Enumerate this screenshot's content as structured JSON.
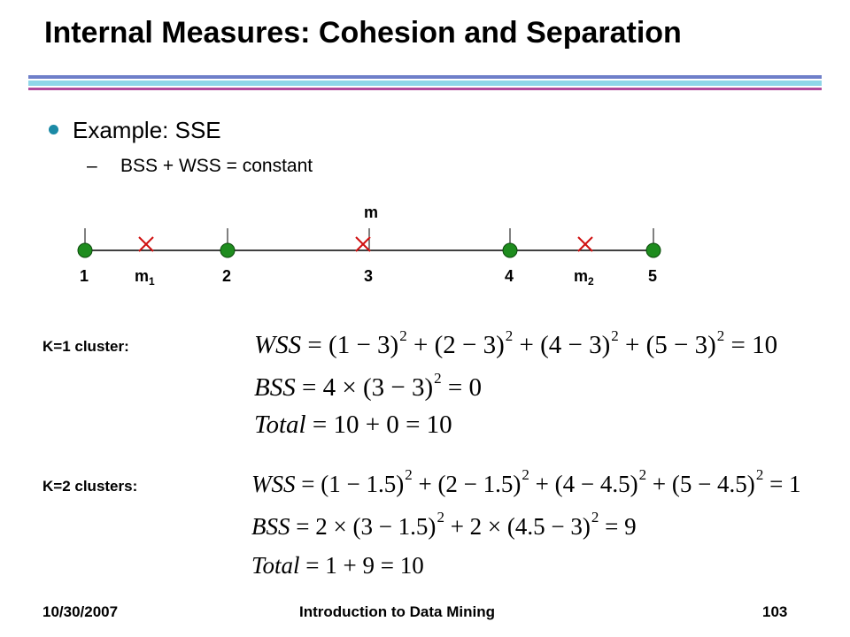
{
  "slide": {
    "title": "Internal Measures: Cohesion and Separation",
    "bullet": "Example: SSE",
    "sub_bullet_dash": "–",
    "sub_bullet": "BSS + WSS = constant"
  },
  "number_line": {
    "mean_label": "m",
    "points": [
      "1",
      "2",
      "3",
      "4",
      "5"
    ],
    "centroid_labels": [
      {
        "base": "m",
        "sub": "1"
      },
      {
        "base": "m",
        "sub": "2"
      }
    ],
    "point_color": "#1e8c1e",
    "marker_color": "#d01010"
  },
  "k1": {
    "label": "K=1 cluster:",
    "wss": {
      "lhs": "WSS",
      "terms": [
        [
          "(1 − 3)",
          "2"
        ],
        [
          "(2 − 3)",
          "2"
        ],
        [
          "(4 − 3)",
          "2"
        ],
        [
          "(5 − 3)",
          "2"
        ]
      ],
      "result": "10"
    },
    "bss": {
      "lhs": "BSS",
      "expr_pre": "4 × ",
      "term": [
        "(3 − 3)",
        "2"
      ],
      "result": "0"
    },
    "total": {
      "lhs": "Total",
      "expr": "10 + 0",
      "result": "10"
    }
  },
  "k2": {
    "label": "K=2 clusters:",
    "wss": {
      "lhs": "WSS",
      "terms": [
        [
          "(1 − 1.5)",
          "2"
        ],
        [
          "(2 − 1.5)",
          "2"
        ],
        [
          "(4 − 4.5)",
          "2"
        ],
        [
          "(5 − 4.5)",
          "2"
        ]
      ],
      "result": "1"
    },
    "bss": {
      "lhs": "BSS",
      "parts": [
        [
          "2 × ",
          "(3 − 1.5)",
          "2"
        ],
        [
          "2 × ",
          "(4.5 − 3)",
          "2"
        ]
      ],
      "result": "9"
    },
    "total": {
      "lhs": "Total",
      "expr": "1 + 9",
      "result": "10"
    }
  },
  "footer": {
    "date": "10/30/2007",
    "course": "Introduction to Data Mining",
    "page": "103"
  },
  "colors": {
    "rule_top": "#6e7fc9",
    "rule_mid": "#8fd6e8",
    "rule_bottom": "#b04a9c",
    "bullet": "#1b8aa6"
  }
}
